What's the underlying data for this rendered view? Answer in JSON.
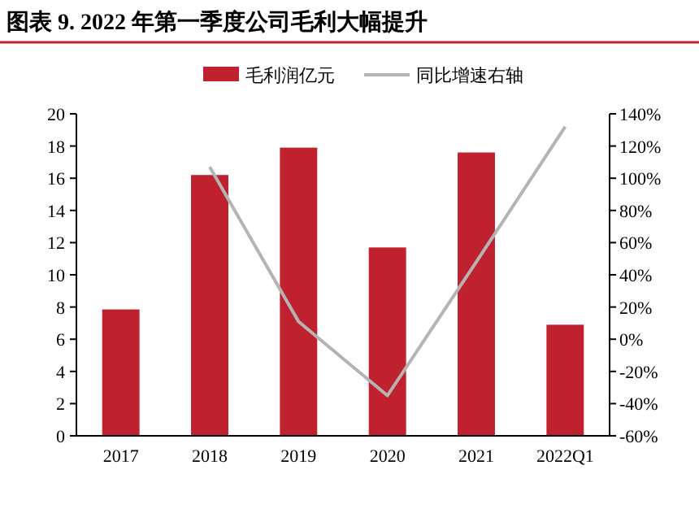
{
  "chart_data": {
    "type": "bar",
    "title": "图表 9.  2022 年第一季度公司毛利大幅提升",
    "categories": [
      "2017",
      "2018",
      "2019",
      "2020",
      "2021",
      "2022Q1"
    ],
    "series": [
      {
        "name": "毛利润亿元",
        "color": "#c0212f",
        "values": [
          7.85,
          16.2,
          17.9,
          11.7,
          17.6,
          6.9
        ]
      },
      {
        "name": "同比增速右轴",
        "type": "line",
        "axis": "y2",
        "color": "#b4b4b4",
        "values": [
          null,
          107,
          11,
          -35,
          48,
          132
        ]
      }
    ],
    "ylim": [
      0,
      20
    ],
    "yticks": [
      0,
      2,
      4,
      6,
      8,
      10,
      12,
      14,
      16,
      18,
      20
    ],
    "y2lim": [
      -60,
      140
    ],
    "y2ticks": [
      {
        "value": -60,
        "label": "-60%"
      },
      {
        "value": -40,
        "label": "-40%"
      },
      {
        "value": -20,
        "label": "-20%"
      },
      {
        "value": 0,
        "label": "0%"
      },
      {
        "value": 20,
        "label": "20%"
      },
      {
        "value": 40,
        "label": "40%"
      },
      {
        "value": 60,
        "label": "60%"
      },
      {
        "value": 80,
        "label": "80%"
      },
      {
        "value": 100,
        "label": "100%"
      },
      {
        "value": 120,
        "label": "120%"
      },
      {
        "value": 140,
        "label": "140%"
      }
    ],
    "legend": "top",
    "grid": false
  }
}
